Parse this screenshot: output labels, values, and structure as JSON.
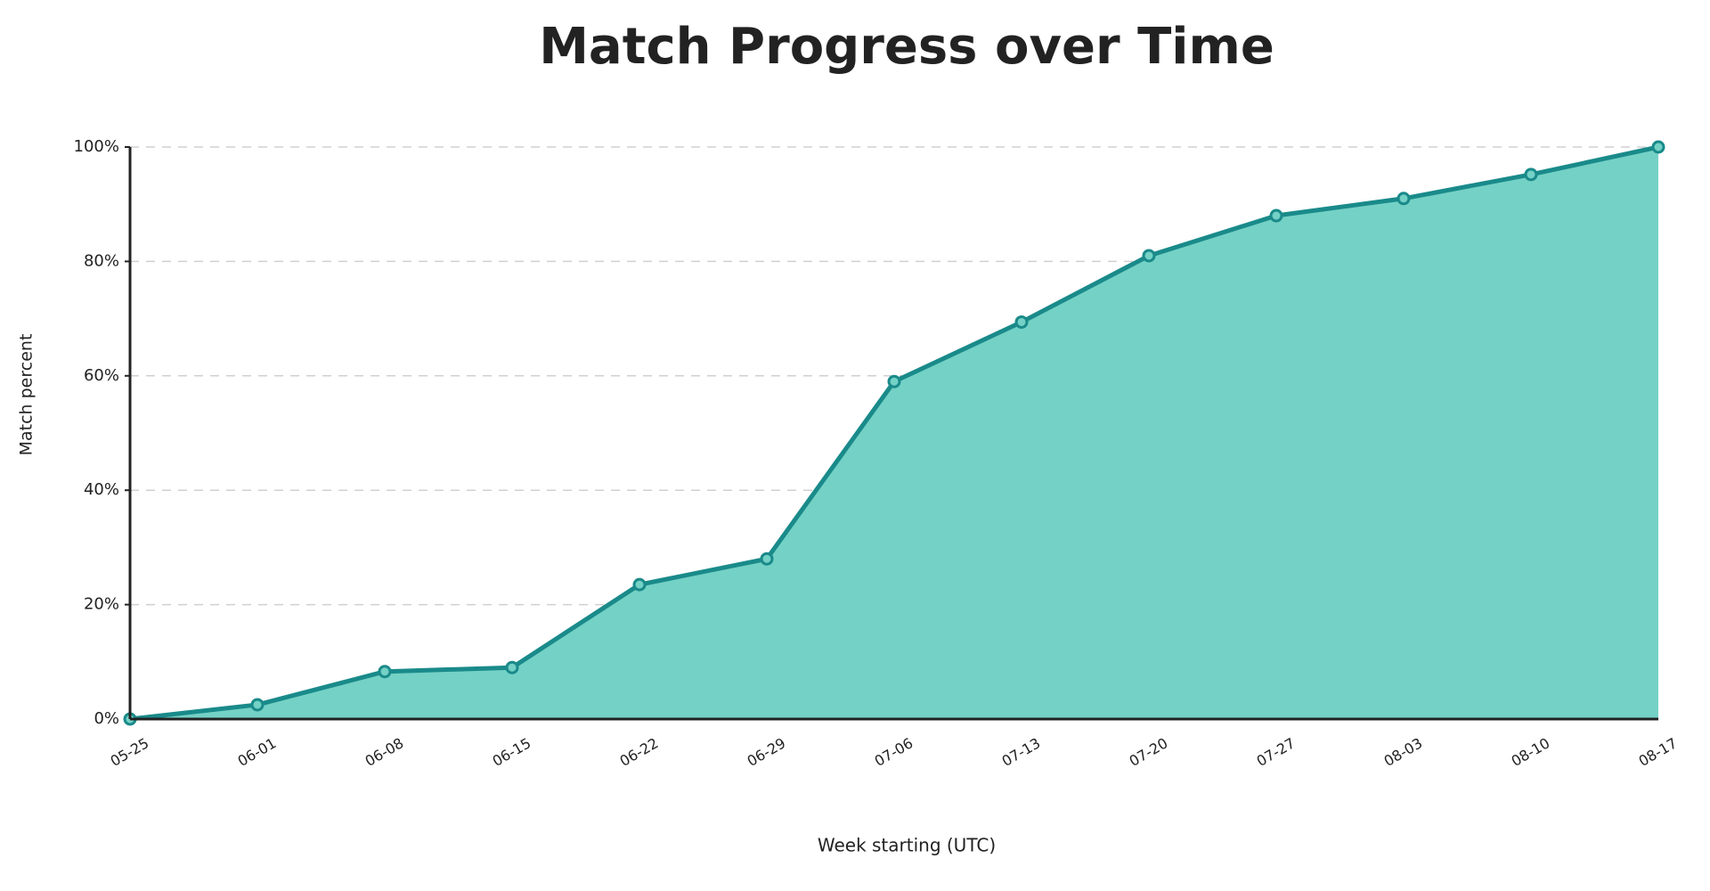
{
  "chart_data": {
    "type": "area",
    "title": "Match Progress over Time",
    "x_label": "Week starting (UTC)",
    "y_label": "Match percent",
    "categories": [
      "05-25",
      "06-01",
      "06-08",
      "06-15",
      "06-22",
      "06-29",
      "07-06",
      "07-13",
      "07-20",
      "07-27",
      "08-03",
      "08-10",
      "08-17"
    ],
    "series": [
      {
        "name": "Match percent",
        "color": "#1a8a8a",
        "fill": "#74d1c5",
        "values": [
          0,
          2.5,
          8.3,
          9,
          23.5,
          28,
          59,
          69.4,
          81,
          88,
          91,
          95.2,
          100
        ]
      }
    ],
    "ylim": [
      0,
      100
    ],
    "yticks": [
      {
        "value": 0,
        "label": "0%"
      },
      {
        "value": 20,
        "label": "20%"
      },
      {
        "value": 40,
        "label": "40%"
      },
      {
        "value": 60,
        "label": "60%"
      },
      {
        "value": 80,
        "label": "80%"
      },
      {
        "value": 100,
        "label": "100%"
      }
    ],
    "grid": true
  }
}
